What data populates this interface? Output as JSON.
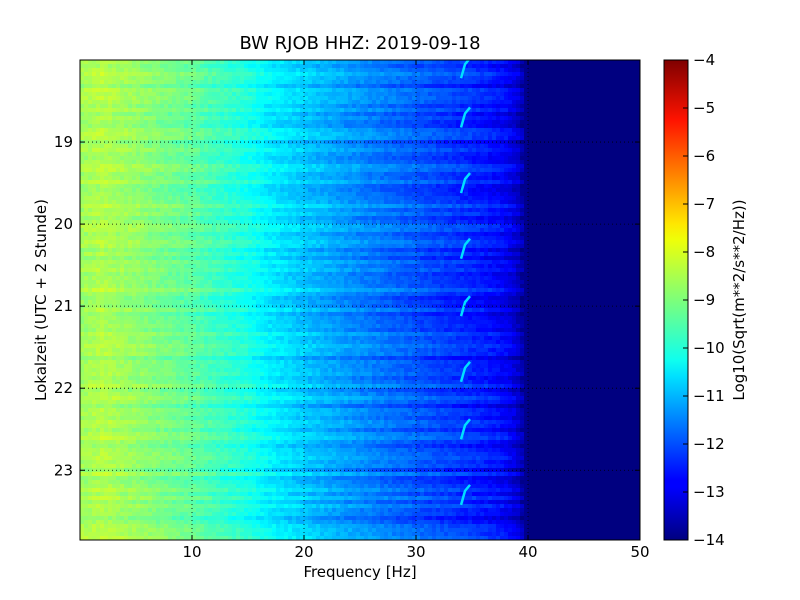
{
  "chart_data": {
    "type": "heatmap",
    "title": "BW RJOB HHZ: 2019-09-18",
    "xlabel": "Frequency [Hz]",
    "ylabel": "Lokalzeit (UTC + 2 Stunde)",
    "xlim": [
      0,
      50
    ],
    "ylim": [
      18.0,
      23.85
    ],
    "y_inverted": true,
    "x_ticks": [
      10,
      20,
      30,
      40,
      50
    ],
    "x_tick_labels": [
      "10",
      "20",
      "30",
      "40",
      "50"
    ],
    "y_ticks": [
      19,
      20,
      21,
      22,
      23
    ],
    "y_tick_labels": [
      "19",
      "20",
      "21",
      "22",
      "23"
    ],
    "grid": true,
    "colormap": "jet",
    "colorbar": {
      "label": "Log10(Sqrt(m**2/s**2/Hz))",
      "range": [
        -14,
        -4
      ],
      "ticks": [
        -4,
        -5,
        -6,
        -7,
        -8,
        -9,
        -10,
        -11,
        -12,
        -13,
        -14
      ],
      "tick_labels": [
        "−4",
        "−5",
        "−6",
        "−7",
        "−8",
        "−9",
        "−10",
        "−11",
        "−12",
        "−13",
        "−14"
      ]
    },
    "frequency_profile": {
      "frequency_hz": [
        0,
        2,
        5,
        8,
        10,
        12,
        15,
        17,
        20,
        25,
        30,
        33,
        36,
        38,
        39,
        40,
        42,
        50
      ],
      "value": [
        -8.7,
        -8.5,
        -8.8,
        -9.1,
        -9.3,
        -9.6,
        -10.0,
        -10.4,
        -10.8,
        -11.4,
        -11.9,
        -12.2,
        -12.5,
        -12.8,
        -13.2,
        -14.0,
        -14.0,
        -14.0
      ]
    },
    "narrowband_feature": {
      "frequency_hz_approx": 34.2,
      "times": [
        18.1,
        18.7,
        19.5,
        20.3,
        21.0,
        21.8,
        22.5,
        23.3
      ]
    }
  }
}
